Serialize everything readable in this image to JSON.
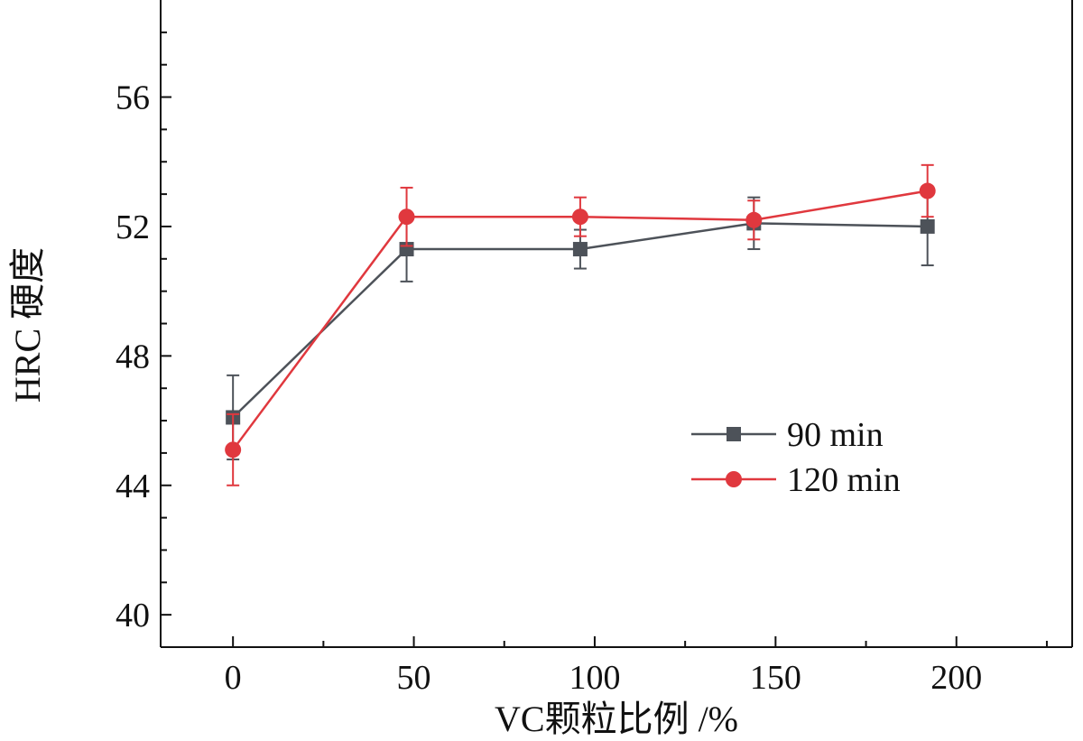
{
  "chart_data": {
    "type": "line",
    "title": "",
    "xlabel": "VC颗粒比例 /%",
    "ylabel": "HRC 硬度",
    "xlim": [
      -20,
      232
    ],
    "ylim": [
      39,
      59
    ],
    "xticks": [
      0,
      50,
      100,
      150,
      200
    ],
    "yticks": [
      40,
      44,
      48,
      52,
      56
    ],
    "x_tick_labels": [
      "0",
      "50",
      "100",
      "150",
      "200"
    ],
    "y_tick_labels": [
      "40",
      "44",
      "48",
      "52",
      "56"
    ],
    "grid": false,
    "legend_position": "center-right",
    "series": [
      {
        "name": "90 min",
        "color": "#4d5259",
        "marker": "square",
        "x": [
          0,
          48,
          96,
          144,
          192
        ],
        "y": [
          46.1,
          51.3,
          51.3,
          52.1,
          52.0
        ],
        "error": [
          1.3,
          1.0,
          0.6,
          0.8,
          1.2
        ]
      },
      {
        "name": "120 min",
        "color": "#e0383e",
        "marker": "circle",
        "x": [
          0,
          48,
          96,
          144,
          192
        ],
        "y": [
          45.1,
          52.3,
          52.3,
          52.2,
          53.1
        ],
        "error": [
          1.1,
          0.9,
          0.6,
          0.6,
          0.8
        ]
      }
    ]
  }
}
